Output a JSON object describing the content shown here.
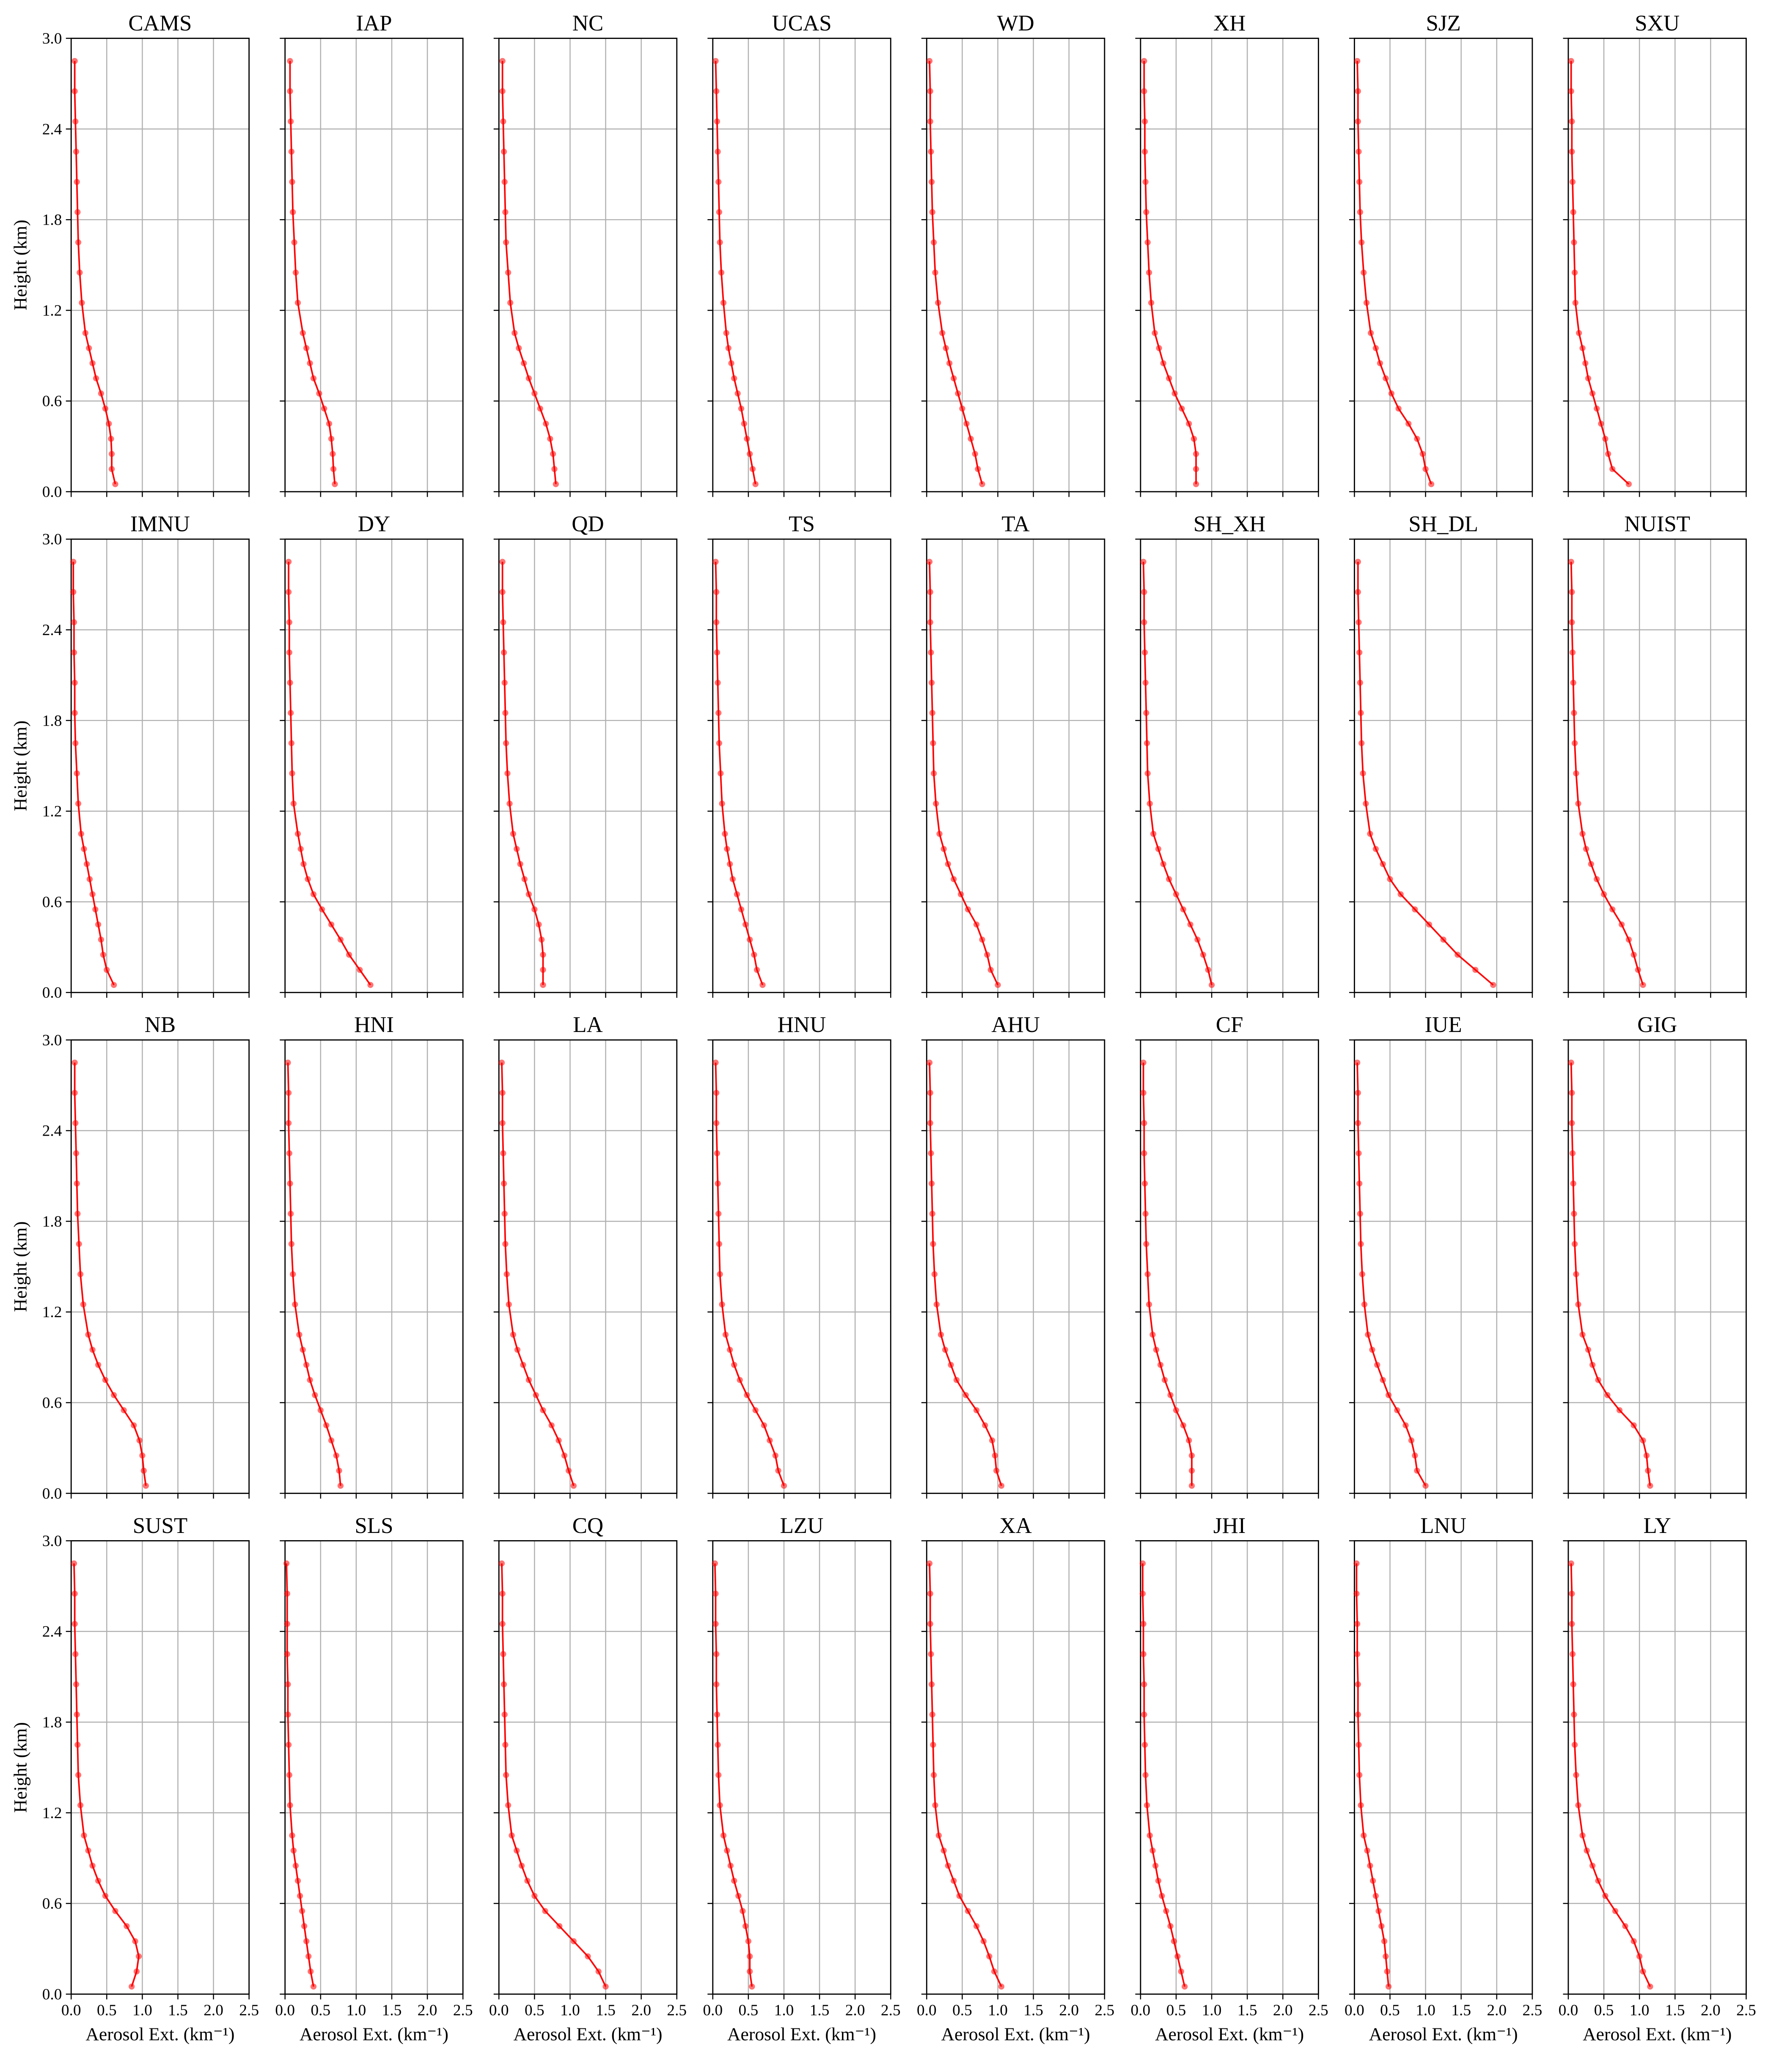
{
  "chart_data": {
    "type": "line",
    "color": "#ff0000",
    "grid": true,
    "xlabel": "Aerosol Ext. (km⁻¹)",
    "ylabel": "Height (km)",
    "xlim": [
      0,
      2.5
    ],
    "ylim": [
      0,
      3
    ],
    "xticks": [
      {
        "value": 0,
        "label": "0.0"
      },
      0.5,
      {
        "value": 1,
        "label": "1.0"
      },
      1.5,
      {
        "value": 2,
        "label": "2.0"
      },
      2.5
    ],
    "yticks": [
      {
        "value": 0,
        "label": "0.0"
      },
      0.6,
      1.2,
      1.8,
      2.4,
      {
        "value": 3,
        "label": "3.0"
      }
    ],
    "heights": [
      0.05,
      0.15,
      0.25,
      0.35,
      0.45,
      0.55,
      0.65,
      0.75,
      0.85,
      0.95,
      1.05,
      1.25,
      1.45,
      1.65,
      1.85,
      2.05,
      2.25,
      2.45,
      2.65,
      2.85
    ],
    "panels": [
      {
        "title": "CAMS",
        "values": [
          0.62,
          0.57,
          0.57,
          0.56,
          0.53,
          0.48,
          0.42,
          0.35,
          0.3,
          0.25,
          0.2,
          0.15,
          0.12,
          0.1,
          0.09,
          0.08,
          0.07,
          0.06,
          0.05,
          0.05
        ]
      },
      {
        "title": "IAP",
        "values": [
          0.7,
          0.68,
          0.67,
          0.65,
          0.62,
          0.55,
          0.48,
          0.4,
          0.35,
          0.3,
          0.25,
          0.18,
          0.15,
          0.13,
          0.11,
          0.1,
          0.09,
          0.08,
          0.07,
          0.07
        ]
      },
      {
        "title": "NC",
        "values": [
          0.8,
          0.78,
          0.76,
          0.72,
          0.66,
          0.58,
          0.5,
          0.42,
          0.35,
          0.28,
          0.22,
          0.16,
          0.13,
          0.1,
          0.09,
          0.08,
          0.07,
          0.06,
          0.05,
          0.05
        ]
      },
      {
        "title": "UCAS",
        "values": [
          0.6,
          0.56,
          0.52,
          0.48,
          0.44,
          0.4,
          0.35,
          0.3,
          0.26,
          0.22,
          0.19,
          0.15,
          0.12,
          0.1,
          0.09,
          0.08,
          0.07,
          0.06,
          0.05,
          0.04
        ]
      },
      {
        "title": "WD",
        "values": [
          0.78,
          0.72,
          0.68,
          0.62,
          0.56,
          0.5,
          0.44,
          0.38,
          0.32,
          0.27,
          0.22,
          0.16,
          0.12,
          0.1,
          0.08,
          0.07,
          0.06,
          0.05,
          0.05,
          0.04
        ]
      },
      {
        "title": "XH",
        "values": [
          0.78,
          0.78,
          0.78,
          0.75,
          0.68,
          0.58,
          0.48,
          0.4,
          0.32,
          0.26,
          0.2,
          0.15,
          0.12,
          0.1,
          0.08,
          0.07,
          0.06,
          0.06,
          0.05,
          0.05
        ]
      },
      {
        "title": "SJZ",
        "values": [
          1.08,
          1.0,
          0.96,
          0.88,
          0.76,
          0.62,
          0.52,
          0.44,
          0.36,
          0.3,
          0.23,
          0.17,
          0.13,
          0.1,
          0.08,
          0.07,
          0.06,
          0.05,
          0.05,
          0.04
        ]
      },
      {
        "title": "SXU",
        "values": [
          0.85,
          0.62,
          0.56,
          0.52,
          0.46,
          0.4,
          0.34,
          0.28,
          0.24,
          0.2,
          0.15,
          0.1,
          0.09,
          0.08,
          0.07,
          0.06,
          0.05,
          0.05,
          0.04,
          0.04
        ]
      },
      {
        "title": "IMNU",
        "values": [
          0.6,
          0.5,
          0.45,
          0.42,
          0.38,
          0.34,
          0.3,
          0.26,
          0.22,
          0.18,
          0.14,
          0.1,
          0.08,
          0.06,
          0.05,
          0.05,
          0.04,
          0.04,
          0.03,
          0.03
        ]
      },
      {
        "title": "DY",
        "values": [
          1.2,
          1.05,
          0.9,
          0.78,
          0.65,
          0.52,
          0.4,
          0.32,
          0.26,
          0.22,
          0.18,
          0.12,
          0.1,
          0.09,
          0.08,
          0.07,
          0.06,
          0.06,
          0.05,
          0.05
        ]
      },
      {
        "title": "QD",
        "values": [
          0.62,
          0.62,
          0.62,
          0.6,
          0.56,
          0.5,
          0.42,
          0.36,
          0.3,
          0.25,
          0.2,
          0.15,
          0.12,
          0.1,
          0.09,
          0.08,
          0.07,
          0.06,
          0.05,
          0.05
        ]
      },
      {
        "title": "TS",
        "values": [
          0.7,
          0.62,
          0.58,
          0.52,
          0.46,
          0.4,
          0.34,
          0.28,
          0.24,
          0.2,
          0.17,
          0.13,
          0.11,
          0.09,
          0.08,
          0.07,
          0.06,
          0.05,
          0.05,
          0.04
        ]
      },
      {
        "title": "TA",
        "values": [
          1.0,
          0.9,
          0.85,
          0.78,
          0.7,
          0.58,
          0.48,
          0.38,
          0.3,
          0.24,
          0.18,
          0.13,
          0.1,
          0.09,
          0.08,
          0.07,
          0.06,
          0.05,
          0.05,
          0.04
        ]
      },
      {
        "title": "SH_XH",
        "values": [
          1.0,
          0.95,
          0.88,
          0.8,
          0.7,
          0.6,
          0.5,
          0.4,
          0.32,
          0.25,
          0.18,
          0.13,
          0.1,
          0.09,
          0.08,
          0.07,
          0.06,
          0.05,
          0.05,
          0.04
        ]
      },
      {
        "title": "SH_DL",
        "values": [
          1.95,
          1.7,
          1.45,
          1.25,
          1.05,
          0.85,
          0.65,
          0.5,
          0.4,
          0.3,
          0.22,
          0.16,
          0.12,
          0.1,
          0.09,
          0.08,
          0.07,
          0.06,
          0.05,
          0.05
        ]
      },
      {
        "title": "NUIST",
        "values": [
          1.05,
          0.98,
          0.92,
          0.85,
          0.75,
          0.62,
          0.5,
          0.4,
          0.32,
          0.25,
          0.2,
          0.14,
          0.11,
          0.09,
          0.08,
          0.07,
          0.06,
          0.05,
          0.05,
          0.04
        ]
      },
      {
        "title": "NB",
        "values": [
          1.05,
          1.02,
          1.0,
          0.96,
          0.88,
          0.74,
          0.6,
          0.48,
          0.38,
          0.3,
          0.24,
          0.17,
          0.13,
          0.11,
          0.09,
          0.08,
          0.07,
          0.06,
          0.05,
          0.05
        ]
      },
      {
        "title": "HNI",
        "values": [
          0.78,
          0.76,
          0.72,
          0.65,
          0.58,
          0.5,
          0.42,
          0.35,
          0.3,
          0.25,
          0.2,
          0.14,
          0.11,
          0.09,
          0.08,
          0.07,
          0.06,
          0.05,
          0.05,
          0.04
        ]
      },
      {
        "title": "LA",
        "values": [
          1.05,
          0.98,
          0.92,
          0.84,
          0.74,
          0.62,
          0.52,
          0.42,
          0.34,
          0.26,
          0.2,
          0.14,
          0.11,
          0.09,
          0.08,
          0.07,
          0.06,
          0.05,
          0.05,
          0.04
        ]
      },
      {
        "title": "HNU",
        "values": [
          1.0,
          0.92,
          0.88,
          0.8,
          0.72,
          0.6,
          0.48,
          0.38,
          0.3,
          0.24,
          0.18,
          0.13,
          0.1,
          0.09,
          0.08,
          0.07,
          0.06,
          0.05,
          0.05,
          0.04
        ]
      },
      {
        "title": "AHU",
        "values": [
          1.05,
          0.98,
          0.96,
          0.92,
          0.82,
          0.7,
          0.55,
          0.42,
          0.34,
          0.26,
          0.2,
          0.14,
          0.11,
          0.09,
          0.08,
          0.07,
          0.06,
          0.05,
          0.05,
          0.04
        ]
      },
      {
        "title": "CF",
        "values": [
          0.72,
          0.72,
          0.72,
          0.68,
          0.6,
          0.5,
          0.42,
          0.34,
          0.28,
          0.22,
          0.17,
          0.12,
          0.1,
          0.08,
          0.07,
          0.06,
          0.05,
          0.05,
          0.04,
          0.04
        ]
      },
      {
        "title": "IUE",
        "values": [
          1.0,
          0.88,
          0.85,
          0.8,
          0.72,
          0.6,
          0.48,
          0.4,
          0.32,
          0.25,
          0.19,
          0.14,
          0.11,
          0.09,
          0.08,
          0.07,
          0.06,
          0.05,
          0.05,
          0.04
        ]
      },
      {
        "title": "GIG",
        "values": [
          1.15,
          1.12,
          1.1,
          1.05,
          0.92,
          0.72,
          0.55,
          0.42,
          0.34,
          0.28,
          0.2,
          0.14,
          0.11,
          0.09,
          0.08,
          0.07,
          0.06,
          0.05,
          0.05,
          0.04
        ]
      },
      {
        "title": "SUST",
        "values": [
          0.85,
          0.92,
          0.95,
          0.9,
          0.78,
          0.62,
          0.48,
          0.38,
          0.3,
          0.24,
          0.18,
          0.13,
          0.1,
          0.09,
          0.08,
          0.07,
          0.06,
          0.05,
          0.05,
          0.04
        ]
      },
      {
        "title": "SLS",
        "values": [
          0.4,
          0.36,
          0.33,
          0.3,
          0.27,
          0.24,
          0.21,
          0.18,
          0.15,
          0.12,
          0.1,
          0.07,
          0.06,
          0.05,
          0.04,
          0.04,
          0.03,
          0.03,
          0.03,
          0.02
        ]
      },
      {
        "title": "CQ",
        "values": [
          1.5,
          1.4,
          1.25,
          1.05,
          0.85,
          0.65,
          0.5,
          0.4,
          0.32,
          0.25,
          0.18,
          0.13,
          0.1,
          0.09,
          0.08,
          0.07,
          0.06,
          0.05,
          0.05,
          0.04
        ]
      },
      {
        "title": "LZU",
        "values": [
          0.55,
          0.52,
          0.52,
          0.5,
          0.46,
          0.42,
          0.36,
          0.3,
          0.25,
          0.2,
          0.15,
          0.1,
          0.08,
          0.07,
          0.06,
          0.05,
          0.05,
          0.04,
          0.04,
          0.03
        ]
      },
      {
        "title": "XA",
        "values": [
          1.05,
          0.95,
          0.88,
          0.8,
          0.7,
          0.58,
          0.46,
          0.38,
          0.3,
          0.24,
          0.17,
          0.12,
          0.1,
          0.09,
          0.08,
          0.07,
          0.06,
          0.05,
          0.05,
          0.04
        ]
      },
      {
        "title": "JHI",
        "values": [
          0.62,
          0.57,
          0.52,
          0.47,
          0.42,
          0.36,
          0.3,
          0.25,
          0.21,
          0.17,
          0.13,
          0.09,
          0.07,
          0.06,
          0.05,
          0.05,
          0.04,
          0.04,
          0.03,
          0.03
        ]
      },
      {
        "title": "LNU",
        "values": [
          0.48,
          0.46,
          0.44,
          0.42,
          0.38,
          0.34,
          0.3,
          0.26,
          0.22,
          0.18,
          0.13,
          0.09,
          0.07,
          0.06,
          0.05,
          0.05,
          0.04,
          0.04,
          0.03,
          0.03
        ]
      },
      {
        "title": "LY",
        "values": [
          1.15,
          1.05,
          1.0,
          0.92,
          0.8,
          0.66,
          0.52,
          0.42,
          0.34,
          0.26,
          0.2,
          0.14,
          0.11,
          0.09,
          0.08,
          0.07,
          0.06,
          0.05,
          0.05,
          0.04
        ]
      }
    ]
  }
}
